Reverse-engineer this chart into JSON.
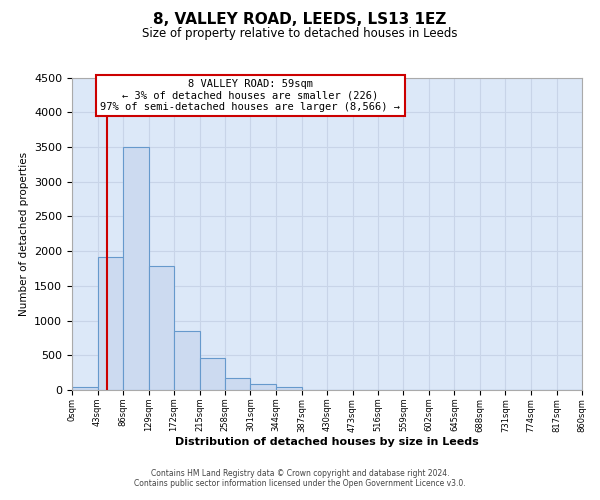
{
  "title": "8, VALLEY ROAD, LEEDS, LS13 1EZ",
  "subtitle": "Size of property relative to detached houses in Leeds",
  "xlabel": "Distribution of detached houses by size in Leeds",
  "ylabel": "Number of detached properties",
  "bin_edges": [
    0,
    43,
    86,
    129,
    172,
    215,
    258,
    301,
    344,
    387,
    430,
    473,
    516,
    559,
    602,
    645,
    688,
    731,
    774,
    817,
    860
  ],
  "bar_heights": [
    50,
    1920,
    3500,
    1780,
    850,
    460,
    175,
    90,
    45,
    0,
    0,
    0,
    0,
    0,
    0,
    0,
    0,
    0,
    0,
    0
  ],
  "bar_color": "#ccdaf0",
  "bar_edge_color": "#6699cc",
  "property_line_x": 59,
  "property_line_color": "#cc0000",
  "ylim": [
    0,
    4500
  ],
  "yticks": [
    0,
    500,
    1000,
    1500,
    2000,
    2500,
    3000,
    3500,
    4000,
    4500
  ],
  "xtick_labels": [
    "0sqm",
    "43sqm",
    "86sqm",
    "129sqm",
    "172sqm",
    "215sqm",
    "258sqm",
    "301sqm",
    "344sqm",
    "387sqm",
    "430sqm",
    "473sqm",
    "516sqm",
    "559sqm",
    "602sqm",
    "645sqm",
    "688sqm",
    "731sqm",
    "774sqm",
    "817sqm",
    "860sqm"
  ],
  "annotation_line1": "8 VALLEY ROAD: 59sqm",
  "annotation_line2": "← 3% of detached houses are smaller (226)",
  "annotation_line3": "97% of semi-detached houses are larger (8,566) →",
  "footer_line1": "Contains HM Land Registry data © Crown copyright and database right 2024.",
  "footer_line2": "Contains public sector information licensed under the Open Government Licence v3.0.",
  "grid_color": "#c8d4e8",
  "background_color": "#dce8f8"
}
